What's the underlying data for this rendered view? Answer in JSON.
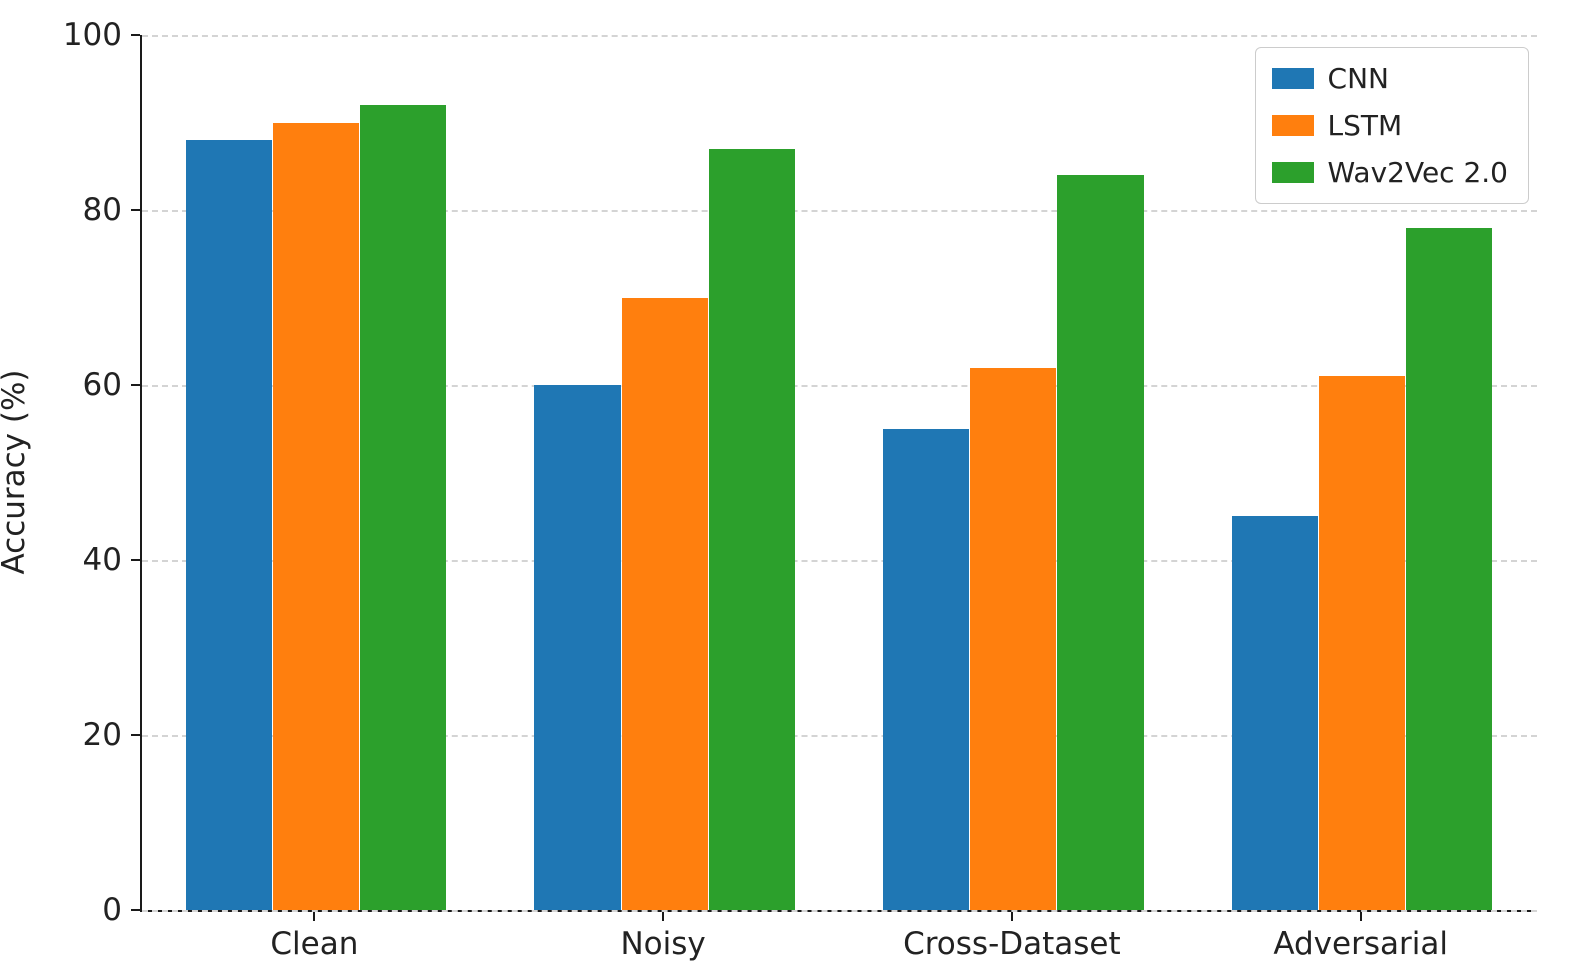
{
  "chart_data": {
    "type": "bar",
    "title": "",
    "xlabel": "",
    "ylabel": "Accuracy (%)",
    "ylim": [
      0,
      100
    ],
    "yticks": [
      0,
      20,
      40,
      60,
      80,
      100
    ],
    "grid": "dashed horizontal",
    "legend_position": "upper right",
    "categories": [
      "Clean",
      "Noisy",
      "Cross-Dataset",
      "Adversarial"
    ],
    "series": [
      {
        "name": "CNN",
        "color": "#1f77b4",
        "values": [
          88,
          60,
          55,
          45
        ]
      },
      {
        "name": "LSTM",
        "color": "#ff7f0e",
        "values": [
          90,
          70,
          62,
          61
        ]
      },
      {
        "name": "Wav2Vec 2.0",
        "color": "#2ca02c",
        "values": [
          92,
          87,
          84,
          78
        ]
      }
    ]
  }
}
